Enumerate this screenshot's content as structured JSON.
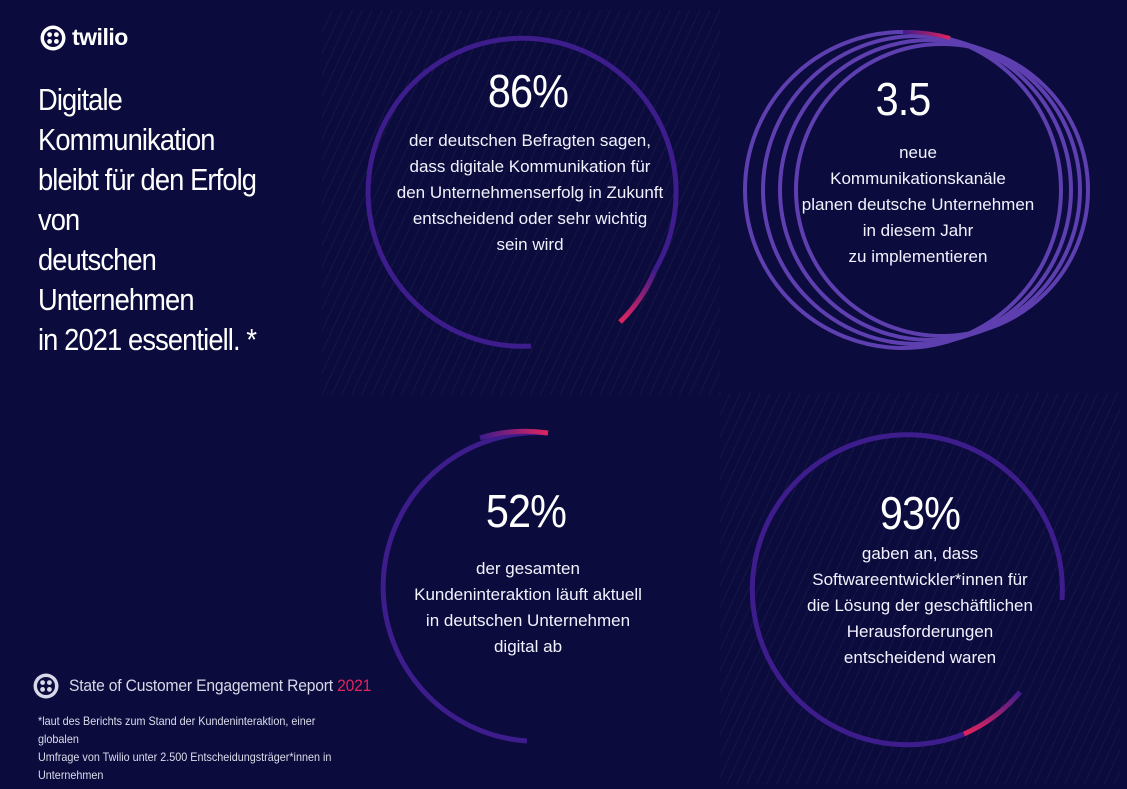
{
  "brand": {
    "name": "twilio",
    "logo_icon": "twilio-logo-icon"
  },
  "headline": "Digitale Kommunikation\nbleibt für den Erfolg von\ndeutschen Unternehmen\nin 2021 essentiell. *",
  "stats": [
    {
      "value": "86%",
      "text": "der deutschen Befragten sagen,\ndass digitale Kommunikation für\nden Unternehmenserfolg in Zukunft\nentscheidend oder sehr wichtig\nsein wird"
    },
    {
      "value": "3.5",
      "text": "neue\nKommunikationskanäle\nplanen deutsche Unternehmen\nin diesem Jahr\nzu implementieren"
    },
    {
      "value": "52%",
      "text": "der gesamten\nKundeninteraktion läuft aktuell\nin deutschen Unternehmen\ndigital ab"
    },
    {
      "value": "93%",
      "text": "gaben an, dass\nSoftwareentwickler*innen für\ndie Lösung der geschäftlichen\nHerausforderungen\nentscheidend waren"
    }
  ],
  "report": {
    "title": "State of Customer Engagement Report",
    "year": "2021"
  },
  "footnote": "*laut des Berichts zum Stand der Kundeninteraktion, einer globalen\nUmfrage von Twilio unter 2.500 Entscheidungsträger*innen in\nUnternehmen",
  "colors": {
    "background": "#0b0b3d",
    "ring": "#3d1c8c",
    "ring_light": "#5e3fb0",
    "accent": "#e0245e"
  }
}
